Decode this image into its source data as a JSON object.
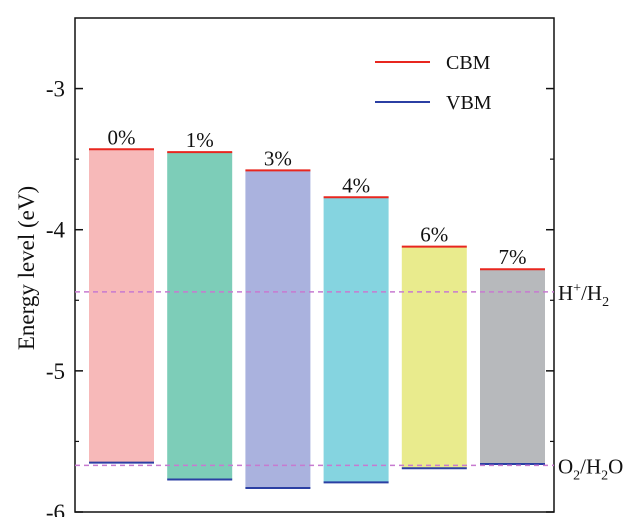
{
  "chart_data": {
    "type": "bar",
    "ylabel": "Energy level (eV)",
    "ylim": [
      -6,
      -2.5
    ],
    "yticks": [
      -3,
      -4,
      -5,
      -6
    ],
    "grid": false,
    "legend_position": "top-right",
    "legend": [
      {
        "label": "CBM",
        "color": "#e8261f"
      },
      {
        "label": "VBM",
        "color": "#2b3fa3"
      }
    ],
    "categories": [
      "0%",
      "1%",
      "3%",
      "4%",
      "6%",
      "7%"
    ],
    "cbm": [
      -3.43,
      -3.45,
      -3.58,
      -3.77,
      -4.12,
      -4.28
    ],
    "vbm": [
      -5.65,
      -5.77,
      -5.83,
      -5.79,
      -5.69,
      -5.66
    ],
    "bar_colors": [
      "#f7b9b9",
      "#7dcdb8",
      "#aab2de",
      "#85d4e0",
      "#e9eb8d",
      "#b7b9bc"
    ],
    "reference_lines": [
      {
        "label_main": "H",
        "label_sup": "+",
        "label_rest1": "/H",
        "label_sub": "2",
        "label_rest2": "",
        "value": -4.44
      },
      {
        "label_main": "O",
        "label_sup": "",
        "label_sub": "2",
        "label_rest1": "",
        "label_rest2": "/H",
        "label_sub2": "2",
        "label_rest3": "O",
        "value": -5.67
      }
    ],
    "reference_line_color": "#c77ad0"
  }
}
